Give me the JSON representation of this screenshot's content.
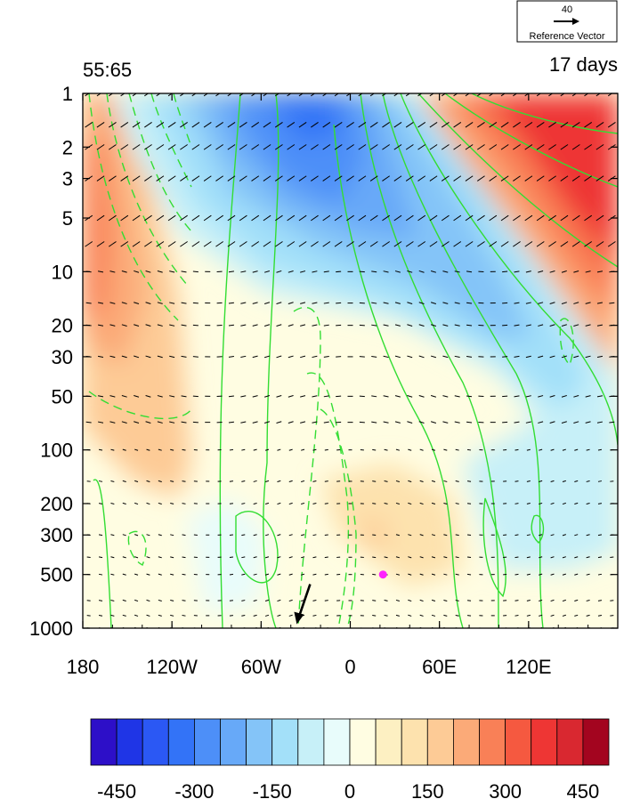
{
  "chart_data": {
    "type": "heatmap",
    "title_left": "55:65",
    "title_right": "17 days",
    "x_axis": {
      "ticks": [
        {
          "value": -180,
          "label": "180"
        },
        {
          "value": -120,
          "label": "120W"
        },
        {
          "value": -60,
          "label": "60W"
        },
        {
          "value": 0,
          "label": "0"
        },
        {
          "value": 60,
          "label": "60E"
        },
        {
          "value": 120,
          "label": "120E"
        }
      ],
      "range": [
        -180,
        180
      ]
    },
    "y_axis": {
      "scale": "log",
      "reversed": true,
      "range": [
        1000,
        1
      ],
      "ticks": [
        {
          "value": 1,
          "label": "1"
        },
        {
          "value": 2,
          "label": "2"
        },
        {
          "value": 3,
          "label": "3"
        },
        {
          "value": 5,
          "label": "5"
        },
        {
          "value": 10,
          "label": "10"
        },
        {
          "value": 20,
          "label": "20"
        },
        {
          "value": 30,
          "label": "30"
        },
        {
          "value": 50,
          "label": "50"
        },
        {
          "value": 100,
          "label": "100"
        },
        {
          "value": 200,
          "label": "200"
        },
        {
          "value": 300,
          "label": "300"
        },
        {
          "value": 500,
          "label": "500"
        },
        {
          "value": 1000,
          "label": "1000"
        }
      ]
    },
    "colorbar": {
      "colors": [
        "#2d0fc8",
        "#1f35e6",
        "#2b58f4",
        "#3373f7",
        "#4d8ff8",
        "#67a9f8",
        "#84c4f8",
        "#a3e0f9",
        "#c7f0f8",
        "#e8fcfb",
        "#fffde2",
        "#fdf0c2",
        "#fde2ae",
        "#fdcb96",
        "#fbaa78",
        "#f98057",
        "#f55940",
        "#ee3634",
        "#d92830",
        "#a3051f"
      ],
      "tick_labels": [
        {
          "value": -450,
          "label": "-450"
        },
        {
          "value": -300,
          "label": "-300"
        },
        {
          "value": -150,
          "label": "-150"
        },
        {
          "value": 0,
          "label": "0"
        },
        {
          "value": 150,
          "label": "150"
        },
        {
          "value": 300,
          "label": "300"
        },
        {
          "value": 450,
          "label": "450"
        }
      ],
      "range": [
        -500,
        500
      ]
    },
    "reference_vector": {
      "magnitude_label": "40",
      "label": "Reference Vector"
    },
    "marker": {
      "lon": 22,
      "pressure": 500,
      "color": "#ff22ff"
    },
    "highlight_arrow": {
      "lon": -33,
      "pressure": 800
    }
  }
}
